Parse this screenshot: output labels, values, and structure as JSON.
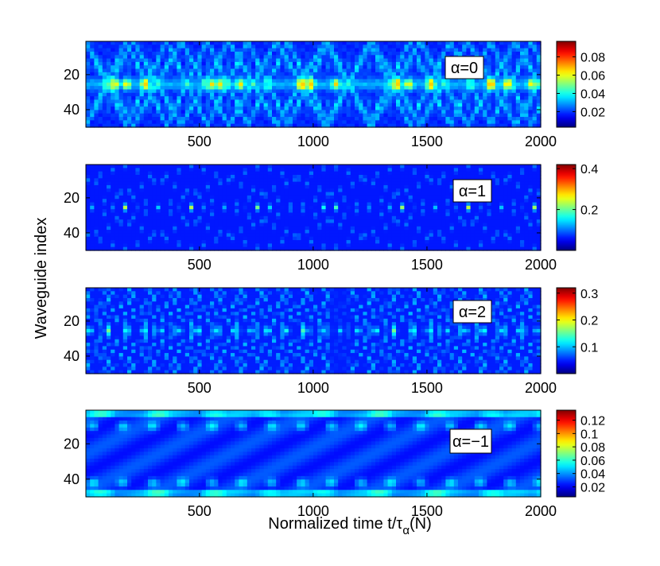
{
  "figure": {
    "ylabel": "Waveguide index",
    "xlabel_main": "Normalized time t/τ",
    "xlabel_sub": "α",
    "xlabel_tail": "(N)"
  },
  "chart_data": [
    {
      "type": "heatmap",
      "label": "α=0",
      "x_ticks": [
        500,
        1000,
        1500,
        2000
      ],
      "y_ticks": [
        20,
        40
      ],
      "xlim": [
        1,
        2000
      ],
      "ylim": [
        1,
        50
      ],
      "colorbar_ticks": [
        "0.08",
        "0.06",
        "0.04",
        "0.02"
      ],
      "colorbar_values": [
        0.08,
        0.06,
        0.04,
        0.02
      ],
      "colorbar_range": [
        0.003,
        0.097
      ]
    },
    {
      "type": "heatmap",
      "label": "α=1",
      "x_ticks": [
        500,
        1000,
        1500,
        2000
      ],
      "y_ticks": [
        20,
        40
      ],
      "xlim": [
        1,
        2000
      ],
      "ylim": [
        1,
        50
      ],
      "colorbar_ticks": [
        "0.4",
        "0.2"
      ],
      "colorbar_values": [
        0.4,
        0.2
      ],
      "colorbar_range": [
        0.0,
        0.42
      ]
    },
    {
      "type": "heatmap",
      "label": "α=2",
      "x_ticks": [
        500,
        1000,
        1500,
        2000
      ],
      "y_ticks": [
        20,
        40
      ],
      "xlim": [
        1,
        2000
      ],
      "ylim": [
        1,
        50
      ],
      "colorbar_ticks": [
        "0.3",
        "0.2",
        "0.1"
      ],
      "colorbar_values": [
        0.3,
        0.2,
        0.1
      ],
      "colorbar_range": [
        0.0,
        0.32
      ]
    },
    {
      "type": "heatmap",
      "label": "α=−1",
      "x_ticks": [
        500,
        1000,
        1500,
        2000
      ],
      "y_ticks": [
        20,
        40
      ],
      "xlim": [
        1,
        2000
      ],
      "ylim": [
        1,
        50
      ],
      "colorbar_ticks": [
        "0.12",
        "0.1",
        "0.08",
        "0.06",
        "0.04",
        "0.02"
      ],
      "colorbar_values": [
        0.12,
        0.1,
        0.08,
        0.06,
        0.04,
        0.02
      ],
      "colorbar_range": [
        0.005,
        0.135
      ]
    }
  ]
}
